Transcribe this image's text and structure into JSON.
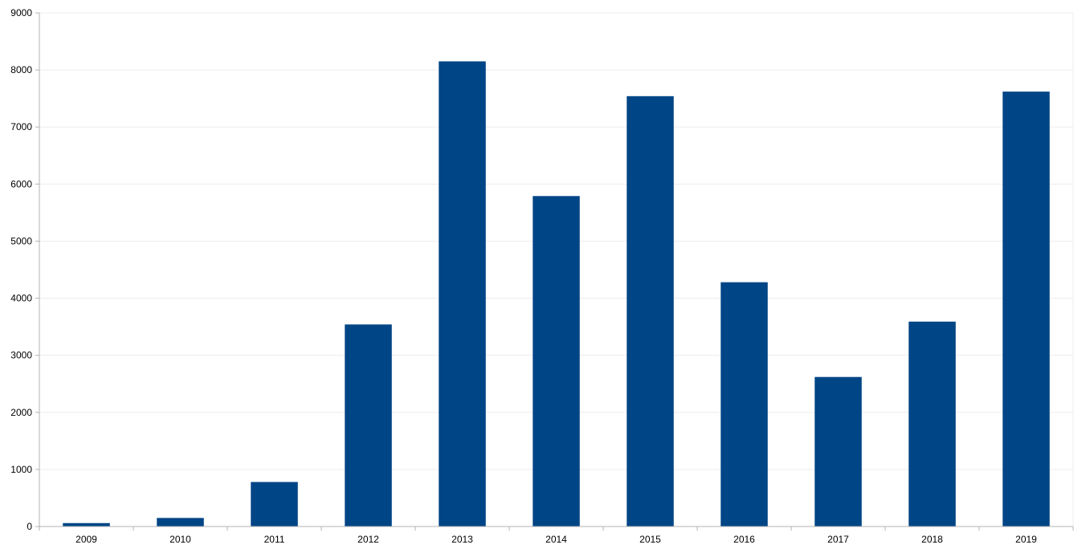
{
  "chart_data": {
    "type": "bar",
    "title": "",
    "xlabel": "",
    "ylabel": "",
    "categories": [
      "2009",
      "2010",
      "2011",
      "2012",
      "2013",
      "2014",
      "2015",
      "2016",
      "2017",
      "2018",
      "2019"
    ],
    "series": [
      {
        "values": [
          60,
          150,
          780,
          3540,
          8150,
          5790,
          7540,
          4280,
          2620,
          3590,
          7620
        ],
        "color": "#004586"
      }
    ],
    "ylim": [
      0,
      9000
    ],
    "yticks": [
      "0",
      "1000",
      "2000",
      "3000",
      "4000",
      "5000",
      "6000",
      "7000",
      "8000",
      "9000"
    ],
    "grid": true,
    "legend": "none"
  }
}
